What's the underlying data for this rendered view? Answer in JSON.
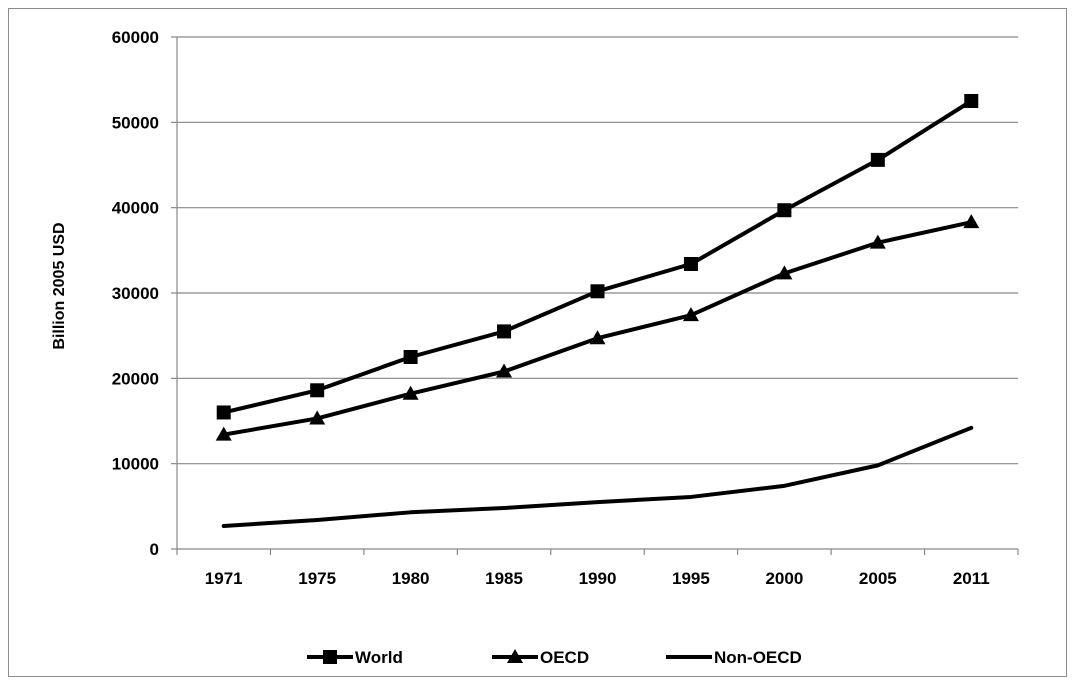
{
  "chart_data": {
    "type": "line",
    "title": "",
    "xlabel": "",
    "ylabel": "Billion 2005 USD",
    "categories": [
      "1971",
      "1975",
      "1980",
      "1985",
      "1990",
      "1995",
      "2000",
      "2005",
      "2011"
    ],
    "ylim": [
      0,
      60000
    ],
    "yticks": [
      "0",
      "10000",
      "20000",
      "30000",
      "40000",
      "50000",
      "60000"
    ],
    "grid": true,
    "legend_position": "bottom",
    "series": [
      {
        "name": "World",
        "marker": "square",
        "values": [
          16000,
          18600,
          22500,
          25500,
          30200,
          33400,
          39700,
          45600,
          52500
        ]
      },
      {
        "name": "OECD",
        "marker": "triangle",
        "values": [
          13400,
          15300,
          18200,
          20800,
          24700,
          27400,
          32300,
          35900,
          38300
        ]
      },
      {
        "name": "Non-OECD",
        "marker": "none",
        "values": [
          2700,
          3400,
          4300,
          4800,
          5500,
          6100,
          7400,
          9800,
          14200
        ]
      }
    ],
    "colors": {
      "line": "#000000",
      "grid": "#888888",
      "axis": "#888888"
    }
  }
}
